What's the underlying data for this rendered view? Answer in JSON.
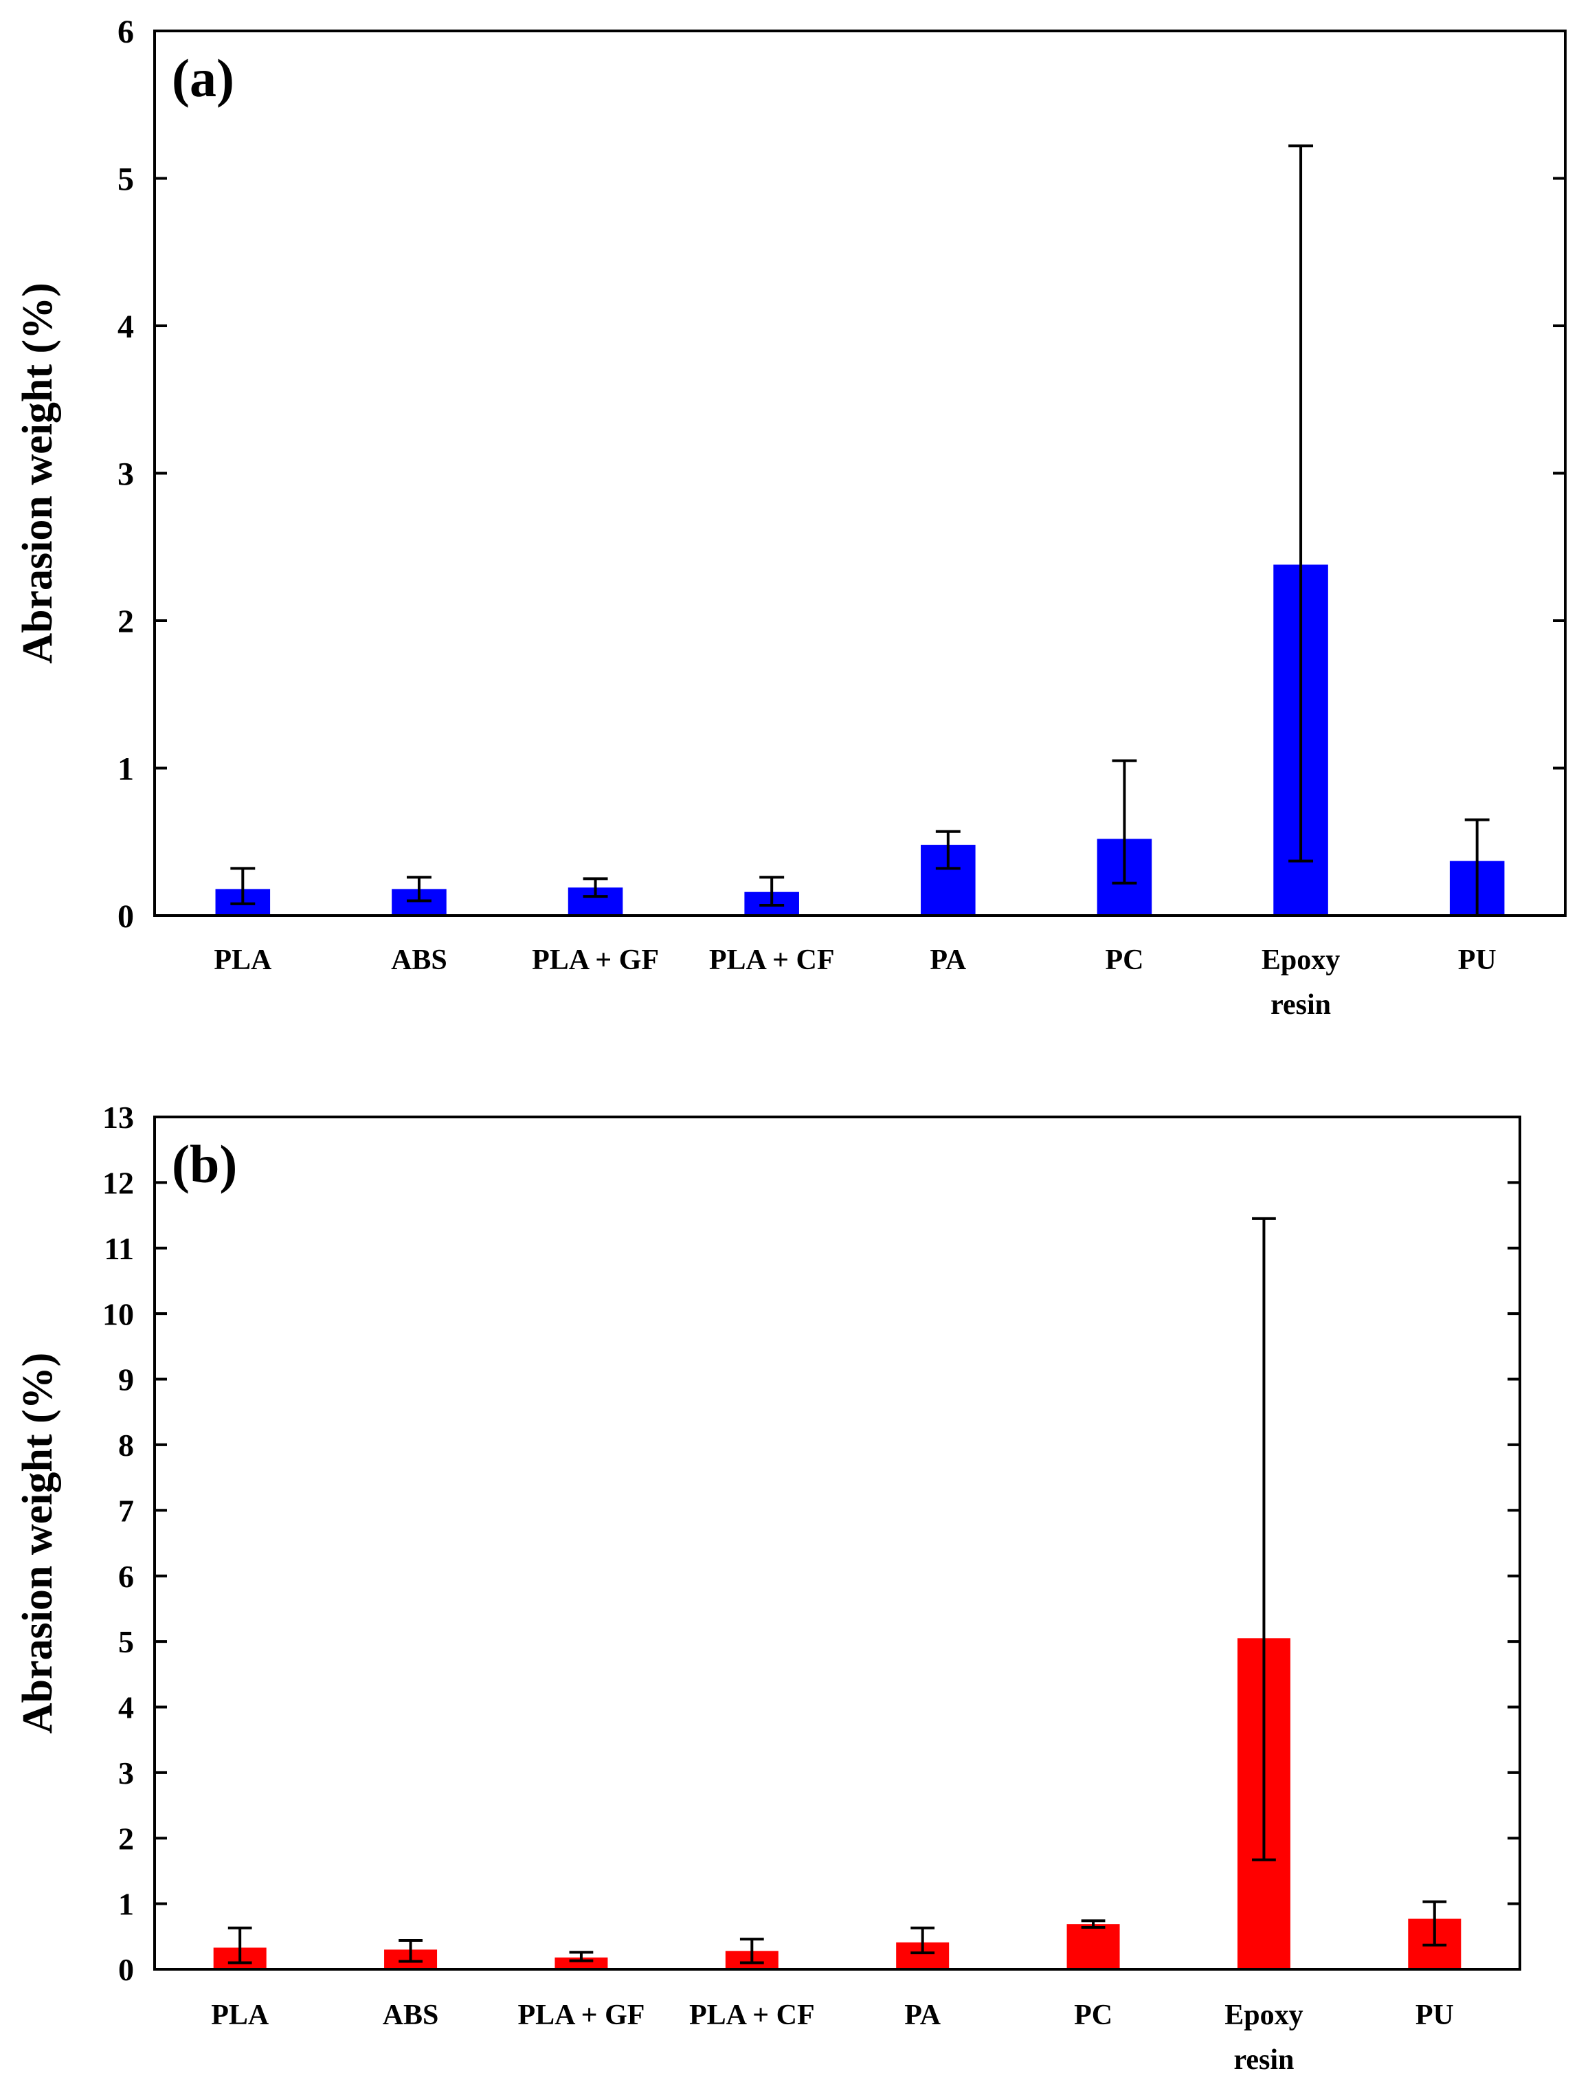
{
  "chart_data": [
    {
      "type": "bar",
      "panel_label": "(a)",
      "categories": [
        "PLA",
        "ABS",
        "PLA + GF",
        "PLA + CF",
        "PA",
        "PC",
        "Epoxy resin",
        "PU"
      ],
      "category_lines": [
        [
          "PLA"
        ],
        [
          "ABS"
        ],
        [
          "PLA + GF"
        ],
        [
          "PLA + CF"
        ],
        [
          "PA"
        ],
        [
          "PC"
        ],
        [
          "Epoxy",
          "resin"
        ],
        [
          "PU"
        ]
      ],
      "values": [
        0.18,
        0.18,
        0.19,
        0.16,
        0.48,
        0.52,
        2.38,
        0.37
      ],
      "error_low": [
        0.08,
        0.1,
        0.13,
        0.07,
        0.32,
        0.22,
        0.37,
        0.0
      ],
      "error_high": [
        0.32,
        0.26,
        0.25,
        0.26,
        0.57,
        1.05,
        5.22,
        0.65
      ],
      "ylabel": "Abrasion weight (%)",
      "xlabel": "",
      "ylim": [
        0,
        6
      ],
      "yticks": [
        0,
        1,
        2,
        3,
        4,
        5,
        6
      ],
      "bar_color": "#0000ff",
      "grid": false
    },
    {
      "type": "bar",
      "panel_label": "(b)",
      "categories": [
        "PLA",
        "ABS",
        "PLA + GF",
        "PLA + CF",
        "PA",
        "PC",
        "Epoxy resin",
        "PU"
      ],
      "category_lines": [
        [
          "PLA"
        ],
        [
          "ABS"
        ],
        [
          "PLA + GF"
        ],
        [
          "PLA + CF"
        ],
        [
          "PA"
        ],
        [
          "PC"
        ],
        [
          "Epoxy",
          "resin"
        ],
        [
          "PU"
        ]
      ],
      "values": [
        0.33,
        0.3,
        0.18,
        0.28,
        0.41,
        0.69,
        5.05,
        0.77
      ],
      "error_low": [
        0.1,
        0.12,
        0.13,
        0.1,
        0.25,
        0.64,
        1.67,
        0.37
      ],
      "error_high": [
        0.63,
        0.44,
        0.26,
        0.46,
        0.63,
        0.74,
        11.45,
        1.03
      ],
      "ylabel": "Abrasion weight (%)",
      "xlabel": "",
      "ylim": [
        0,
        13
      ],
      "yticks": [
        0,
        1,
        2,
        3,
        4,
        5,
        6,
        7,
        8,
        9,
        10,
        11,
        12,
        13
      ],
      "bar_color": "#ff0000",
      "grid": false
    }
  ]
}
